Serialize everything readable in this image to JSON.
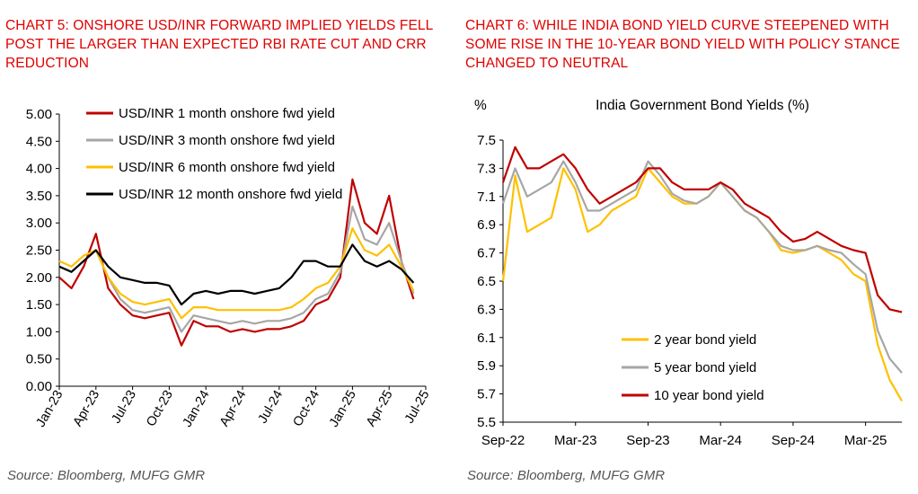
{
  "left": {
    "title": "CHART 5: ONSHORE USD/INR FORWARD IMPLIED YIELDS FELL POST THE LARGER THAN EXPECTED RBI RATE CUT AND CRR REDUCTION",
    "source": "Source: Bloomberg, MUFG GMR"
  },
  "right": {
    "title": "CHART 6: WHILE INDIA BOND YIELD CURVE STEEPENED WITH SOME RISE IN THE 10-YEAR BOND YIELD WITH POLICY STANCE CHANGED TO NEUTRAL",
    "source": "Source: Bloomberg, MUFG GMR"
  },
  "chart_data": [
    {
      "type": "line",
      "title": "",
      "xlabel": "",
      "ylabel": "",
      "x_ticks": [
        "Jan-23",
        "Apr-23",
        "Jul-23",
        "Oct-23",
        "Jan-24",
        "Apr-24",
        "Jul-24",
        "Oct-24",
        "Jan-25",
        "Apr-25",
        "Jul-25"
      ],
      "y_ticks": [
        "0.00",
        "0.50",
        "1.00",
        "1.50",
        "2.00",
        "2.50",
        "3.00",
        "3.50",
        "4.00",
        "4.50",
        "5.00"
      ],
      "ylim": [
        0,
        5
      ],
      "grid": false,
      "legend": "top-left",
      "x": [
        "2023-01",
        "2023-02",
        "2023-03",
        "2023-04",
        "2023-05",
        "2023-06",
        "2023-07",
        "2023-08",
        "2023-09",
        "2023-10",
        "2023-11",
        "2023-12",
        "2024-01",
        "2024-02",
        "2024-03",
        "2024-04",
        "2024-05",
        "2024-06",
        "2024-07",
        "2024-08",
        "2024-09",
        "2024-10",
        "2024-11",
        "2024-12",
        "2025-01",
        "2025-02",
        "2025-03",
        "2025-04",
        "2025-05",
        "2025-06"
      ],
      "series": [
        {
          "name": "USD/INR 1 month onshore fwd yield",
          "color": "#c00000",
          "values": [
            2.0,
            1.8,
            2.2,
            2.8,
            1.8,
            1.5,
            1.3,
            1.25,
            1.3,
            1.35,
            0.75,
            1.2,
            1.1,
            1.1,
            1.0,
            1.05,
            1.0,
            1.05,
            1.05,
            1.1,
            1.2,
            1.5,
            1.6,
            2.0,
            3.8,
            3.0,
            2.8,
            3.5,
            2.3,
            1.6
          ]
        },
        {
          "name": "USD/INR 3 month onshore fwd yield",
          "color": "#a6a6a6",
          "values": [
            2.2,
            2.1,
            2.3,
            2.5,
            2.0,
            1.6,
            1.4,
            1.35,
            1.4,
            1.45,
            1.0,
            1.3,
            1.25,
            1.2,
            1.15,
            1.2,
            1.15,
            1.2,
            1.2,
            1.25,
            1.35,
            1.6,
            1.7,
            2.1,
            3.3,
            2.7,
            2.6,
            3.0,
            2.3,
            1.7
          ]
        },
        {
          "name": "USD/INR 6 month onshore fwd yield",
          "color": "#ffc000",
          "values": [
            2.3,
            2.2,
            2.4,
            2.5,
            2.0,
            1.7,
            1.55,
            1.5,
            1.55,
            1.6,
            1.25,
            1.45,
            1.45,
            1.4,
            1.4,
            1.4,
            1.4,
            1.4,
            1.4,
            1.45,
            1.6,
            1.8,
            1.9,
            2.2,
            2.9,
            2.5,
            2.4,
            2.6,
            2.2,
            1.75
          ]
        },
        {
          "name": "USD/INR 12 month onshore fwd yield",
          "color": "#000000",
          "values": [
            2.2,
            2.1,
            2.3,
            2.5,
            2.2,
            2.0,
            1.95,
            1.9,
            1.9,
            1.85,
            1.5,
            1.7,
            1.75,
            1.7,
            1.75,
            1.75,
            1.7,
            1.75,
            1.8,
            2.0,
            2.3,
            2.3,
            2.2,
            2.2,
            2.6,
            2.3,
            2.2,
            2.3,
            2.15,
            1.9
          ]
        }
      ]
    },
    {
      "type": "line",
      "title": "India Government Bond Yields (%)",
      "xlabel": "",
      "ylabel": "%",
      "x_ticks": [
        "Sep-22",
        "Mar-23",
        "Sep-23",
        "Mar-24",
        "Sep-24",
        "Mar-25"
      ],
      "y_ticks": [
        "5.5",
        "5.7",
        "5.9",
        "6.1",
        "6.3",
        "6.5",
        "6.7",
        "6.9",
        "7.1",
        "7.3",
        "7.5"
      ],
      "ylim": [
        5.5,
        7.5
      ],
      "grid": false,
      "legend": "bottom-left",
      "x": [
        "2022-09",
        "2022-10",
        "2022-11",
        "2022-12",
        "2023-01",
        "2023-02",
        "2023-03",
        "2023-04",
        "2023-05",
        "2023-06",
        "2023-07",
        "2023-08",
        "2023-09",
        "2023-10",
        "2023-11",
        "2023-12",
        "2024-01",
        "2024-02",
        "2024-03",
        "2024-04",
        "2024-05",
        "2024-06",
        "2024-07",
        "2024-08",
        "2024-09",
        "2024-10",
        "2024-11",
        "2024-12",
        "2025-01",
        "2025-02",
        "2025-03",
        "2025-04",
        "2025-05",
        "2025-06"
      ],
      "series": [
        {
          "name": "2 year  bond yield",
          "color": "#ffc000",
          "values": [
            6.5,
            7.25,
            6.85,
            6.9,
            6.95,
            7.3,
            7.15,
            6.85,
            6.9,
            7.0,
            7.05,
            7.1,
            7.3,
            7.2,
            7.1,
            7.05,
            7.05,
            7.1,
            7.2,
            7.1,
            7.0,
            6.95,
            6.85,
            6.72,
            6.7,
            6.72,
            6.75,
            6.7,
            6.65,
            6.55,
            6.5,
            6.05,
            5.8,
            5.65
          ]
        },
        {
          "name": "5 year  bond yield",
          "color": "#a6a6a6",
          "values": [
            7.05,
            7.3,
            7.1,
            7.15,
            7.2,
            7.35,
            7.2,
            7.0,
            7.0,
            7.05,
            7.1,
            7.15,
            7.35,
            7.25,
            7.12,
            7.07,
            7.05,
            7.1,
            7.2,
            7.1,
            7.0,
            6.95,
            6.85,
            6.75,
            6.72,
            6.72,
            6.75,
            6.72,
            6.7,
            6.62,
            6.55,
            6.15,
            5.95,
            5.85
          ]
        },
        {
          "name": "10 year  bond yield",
          "color": "#c00000",
          "values": [
            7.2,
            7.45,
            7.3,
            7.3,
            7.35,
            7.4,
            7.3,
            7.15,
            7.05,
            7.1,
            7.15,
            7.2,
            7.3,
            7.3,
            7.2,
            7.15,
            7.15,
            7.15,
            7.2,
            7.15,
            7.05,
            7.0,
            6.95,
            6.85,
            6.78,
            6.8,
            6.85,
            6.8,
            6.75,
            6.72,
            6.7,
            6.4,
            6.3,
            6.28
          ]
        }
      ]
    }
  ]
}
